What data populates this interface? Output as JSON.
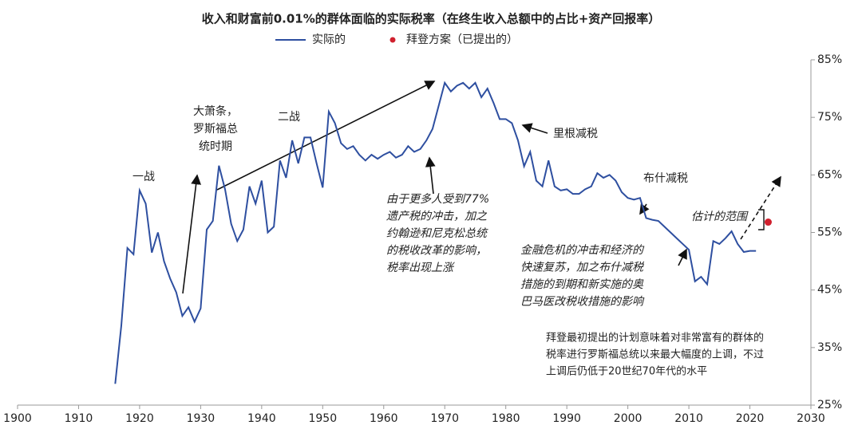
{
  "chart_data": {
    "type": "line",
    "title": "收入和财富前0.01%的群体面临的实际税率（在终生收入总额中的占比+资产回报率）",
    "series": [
      {
        "name": "实际的",
        "color": "#2e4fa0",
        "style": "line",
        "x": [
          1916,
          1917,
          1918,
          1919,
          1920,
          1921,
          1922,
          1923,
          1924,
          1925,
          1926,
          1927,
          1928,
          1929,
          1930,
          1931,
          1932,
          1933,
          1934,
          1935,
          1936,
          1937,
          1938,
          1939,
          1940,
          1941,
          1942,
          1943,
          1944,
          1945,
          1946,
          1947,
          1948,
          1949,
          1950,
          1951,
          1952,
          1953,
          1954,
          1955,
          1956,
          1957,
          1958,
          1959,
          1960,
          1961,
          1962,
          1963,
          1964,
          1965,
          1966,
          1967,
          1968,
          1969,
          1970,
          1971,
          1972,
          1973,
          1974,
          1975,
          1976,
          1977,
          1978,
          1979,
          1980,
          1981,
          1982,
          1983,
          1984,
          1985,
          1986,
          1987,
          1988,
          1989,
          1990,
          1991,
          1992,
          1993,
          1994,
          1995,
          1996,
          1997,
          1998,
          1999,
          2000,
          2001,
          2002,
          2003,
          2004,
          2005,
          2006,
          2007,
          2008,
          2009,
          2010,
          2011,
          2012,
          2013,
          2014,
          2015,
          2016,
          2017,
          2018,
          2019,
          2020,
          2021
        ],
        "values": [
          28.7,
          38.8,
          52.3,
          51.2,
          62.3,
          60,
          51.5,
          55,
          50,
          47,
          44.6,
          40.5,
          42,
          39.5,
          41.8,
          55.5,
          57,
          66.6,
          62.5,
          56.5,
          53.5,
          55.5,
          63,
          60,
          64,
          55,
          56,
          67.5,
          64.5,
          71,
          67,
          71.5,
          71.5,
          67,
          62.8,
          76,
          74,
          70.5,
          69.5,
          70,
          68.5,
          67.5,
          68.5,
          67.8,
          68.5,
          69,
          68,
          68.5,
          70,
          69,
          69.5,
          71,
          73,
          77,
          81,
          79.5,
          80.5,
          81,
          80,
          81,
          78.5,
          80,
          77.5,
          74.7,
          74.7,
          74,
          71,
          66.5,
          69,
          64,
          63,
          67.5,
          63,
          62.3,
          62.5,
          61.7,
          61.7,
          62.5,
          63,
          65.3,
          64.5,
          65,
          64,
          62,
          61,
          60.7,
          61,
          57.5,
          57.2,
          57,
          56,
          55,
          54,
          53,
          52,
          46.5,
          47.3,
          46,
          53.5,
          53,
          54,
          55.2,
          53,
          51.6,
          51.8,
          51.8
        ]
      },
      {
        "name": "拜登方案（已提出的）",
        "color": "#d0202e",
        "style": "point",
        "x": [
          2023
        ],
        "values": [
          56.8
        ]
      }
    ],
    "xlim": [
      1900,
      2030
    ],
    "xticks": [
      1900,
      1910,
      1920,
      1930,
      1940,
      1950,
      1960,
      1970,
      1980,
      1990,
      2000,
      2010,
      2020,
      2030
    ],
    "ylim": [
      25,
      85
    ],
    "yticks": [
      {
        "value": 25,
        "label": "25%"
      },
      {
        "value": 35,
        "label": "35%"
      },
      {
        "value": 45,
        "label": "45%"
      },
      {
        "value": 55,
        "label": "55%"
      },
      {
        "value": 65,
        "label": "65%"
      },
      {
        "value": 75,
        "label": "75%"
      },
      {
        "value": 85,
        "label": "85%"
      }
    ],
    "yaxis_side": "right",
    "annotations": [
      [
        "一战"
      ],
      [
        "大萧条，",
        "罗斯福总",
        "统时期"
      ],
      [
        "二战"
      ],
      [
        "由于更多人受到77%",
        "遗产税的冲击，加之",
        "约翰逊和尼克松总统",
        "的税收改革的影响，",
        "税率出现上涨"
      ],
      [
        "里根减税"
      ],
      [
        "布什减税"
      ],
      [
        "估计的范围"
      ],
      [
        "金融危机的冲击和经济的",
        "快速复苏，加之布什减税",
        "措施的到期和新实施的奥",
        "巴马医改税收措施的影响"
      ],
      [
        "拜登最初提出的计划意味着对非常富有的群体的",
        "税率进行罗斯福总统以来最大幅度的上调，不过",
        "上调后仍低于20世纪70年代的水平"
      ]
    ]
  }
}
